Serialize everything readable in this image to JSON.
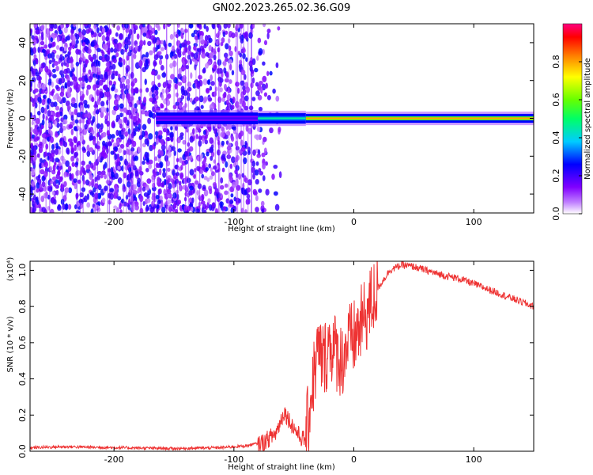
{
  "title": "GN02.2023.265.02.36.G09",
  "chart_data": [
    {
      "type": "heatmap",
      "xlabel": "Height of straight line (km)",
      "ylabel": "Frequency (Hz)",
      "xlim": [
        -270,
        150
      ],
      "ylim": [
        -50,
        50
      ],
      "xticks": [
        -200,
        -100,
        0,
        100
      ],
      "xtick_labels": [
        "-200",
        "-100",
        "0",
        "100"
      ],
      "yticks": [
        -40,
        -20,
        0,
        20,
        40
      ],
      "ytick_labels": [
        "-40",
        "-20",
        "0",
        "20",
        "40"
      ],
      "colorbar": {
        "label": "Normalized spectral amplitude",
        "range": [
          0,
          1
        ],
        "ticks": [
          0.0,
          0.2,
          0.4,
          0.6,
          0.8
        ],
        "tick_labels": [
          "0.0",
          "0.2",
          "0.4",
          "0.6",
          "0.8"
        ],
        "colormap": [
          "#ffffff",
          "#8000ff",
          "#0000ff",
          "#00ffff",
          "#00ff00",
          "#ffff00",
          "#ff8000",
          "#ff0000",
          "#ff0080"
        ]
      },
      "signal_band": {
        "center_frequency_hz": 0,
        "segments": [
          {
            "x": [
              -165,
              -80
            ],
            "amplitude": 0.2
          },
          {
            "x": [
              -80,
              -40
            ],
            "amplitude": 0.45
          },
          {
            "x": [
              -40,
              150
            ],
            "amplitude": 0.8
          }
        ]
      },
      "noise_region_x": [
        -270,
        -80
      ]
    },
    {
      "type": "line",
      "xlabel": "Height of straight line (km)",
      "ylabel": "SNR (10 * v/v)",
      "y_multiplier": "(x10⁴)",
      "xlim": [
        -270,
        150
      ],
      "ylim": [
        0,
        1.05
      ],
      "xticks": [
        -200,
        -100,
        0,
        100
      ],
      "xtick_labels": [
        "-200",
        "-100",
        "0",
        "100"
      ],
      "yticks": [
        0.0,
        0.2,
        0.4,
        0.6,
        0.8,
        1.0
      ],
      "ytick_labels": [
        "0.0",
        "0.2",
        "0.4",
        "0.6",
        "0.8",
        "1.0"
      ],
      "color": "#ee3333",
      "series": [
        {
          "x": [
            -270,
            -240,
            -200,
            -150,
            -110,
            -90,
            -75,
            -65,
            -58,
            -52,
            -45,
            -40,
            -35,
            -30,
            -25,
            -20,
            -15,
            -10,
            -5,
            0,
            10,
            20,
            30,
            40,
            50,
            70,
            90,
            110,
            130,
            150
          ],
          "values": [
            0.02,
            0.025,
            0.02,
            0.015,
            0.02,
            0.03,
            0.05,
            0.1,
            0.22,
            0.15,
            0.08,
            0.06,
            0.35,
            0.55,
            0.5,
            0.6,
            0.55,
            0.5,
            0.6,
            0.62,
            0.75,
            0.9,
            1.0,
            1.03,
            1.02,
            0.98,
            0.95,
            0.9,
            0.85,
            0.8
          ]
        }
      ]
    }
  ]
}
